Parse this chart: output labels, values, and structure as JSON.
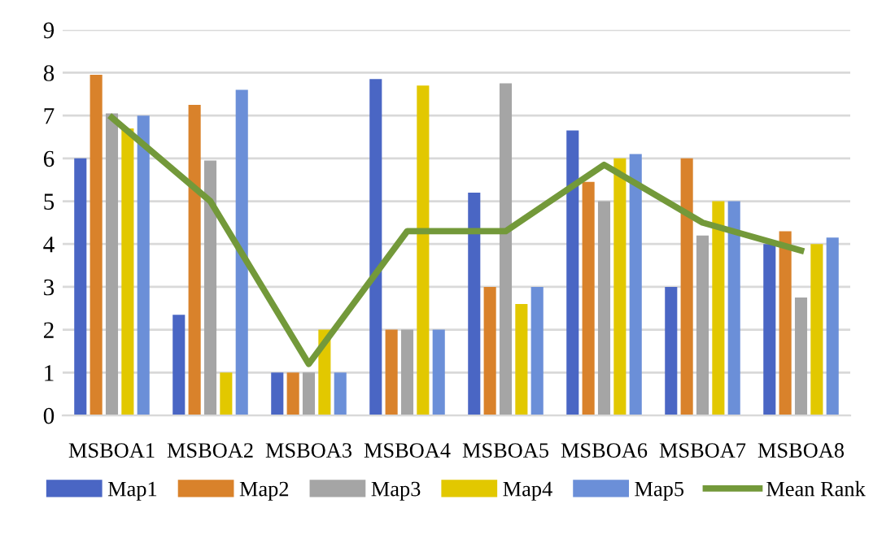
{
  "chart_data": {
    "type": "bar",
    "categories": [
      "MSBOA1",
      "MSBOA2",
      "MSBOA3",
      "MSBOA4",
      "MSBOA5",
      "MSBOA6",
      "MSBOA7",
      "MSBOA8"
    ],
    "series": [
      {
        "name": "Map1",
        "color": "#4a66c4",
        "values": [
          6,
          2.35,
          1,
          7.85,
          5.2,
          6.65,
          3,
          4
        ]
      },
      {
        "name": "Map2",
        "color": "#d9822b",
        "values": [
          7.95,
          7.25,
          1,
          2,
          3,
          5.45,
          6,
          4.3
        ]
      },
      {
        "name": "Map3",
        "color": "#a5a5a5",
        "values": [
          7.05,
          5.95,
          1,
          2,
          7.75,
          5,
          4.2,
          2.75
        ]
      },
      {
        "name": "Map4",
        "color": "#e2c800",
        "values": [
          6.7,
          1,
          2,
          7.7,
          2.6,
          6,
          5,
          4
        ]
      },
      {
        "name": "Map5",
        "color": "#6b8fd8",
        "values": [
          7,
          7.6,
          1,
          2,
          3,
          6.1,
          5,
          4.15
        ]
      },
      {
        "name": "Mean Rank",
        "type": "line",
        "color": "#73993a",
        "values": [
          6.95,
          5.0,
          1.2,
          4.3,
          4.3,
          5.85,
          4.5,
          3.85
        ]
      }
    ],
    "ylim": [
      0,
      9
    ],
    "yticks": [
      0,
      1,
      2,
      3,
      4,
      5,
      6,
      7,
      8,
      9
    ],
    "grid": "y",
    "legend": "bottom"
  }
}
